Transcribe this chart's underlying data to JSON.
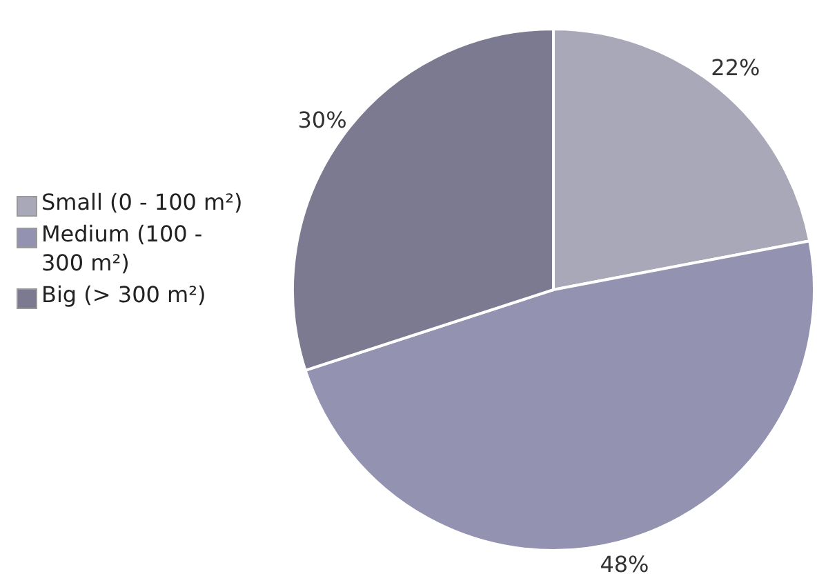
{
  "chart_data": {
    "type": "pie",
    "categories": [
      "Small (0 - 100 m²)",
      "Medium (100 - 300 m²)",
      "Big (> 300 m²)"
    ],
    "values": [
      22,
      48,
      30
    ],
    "colors": [
      "#a9a8b8",
      "#9392b0",
      "#7b7a90"
    ],
    "value_labels": [
      "22%",
      "48%",
      "30%"
    ],
    "legend": "left"
  }
}
